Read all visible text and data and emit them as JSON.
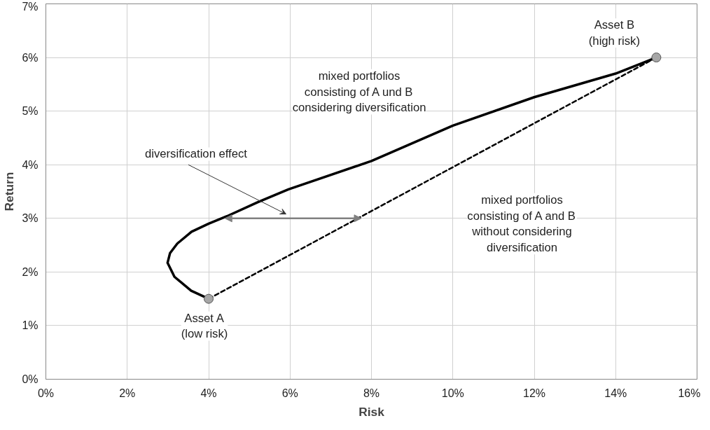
{
  "chart_data": {
    "type": "line",
    "xlabel": "Risk",
    "ylabel": "Return",
    "xlim": [
      0,
      16
    ],
    "ylim": [
      0,
      7
    ],
    "xticks": [
      {
        "value": 0,
        "label": "0%"
      },
      {
        "value": 2,
        "label": "2%"
      },
      {
        "value": 4,
        "label": "4%"
      },
      {
        "value": 6,
        "label": "6%"
      },
      {
        "value": 8,
        "label": "8%"
      },
      {
        "value": 10,
        "label": "10%"
      },
      {
        "value": 12,
        "label": "12%"
      },
      {
        "value": 14,
        "label": "14%"
      },
      {
        "value": 16,
        "label": "16%"
      }
    ],
    "yticks": [
      {
        "value": 0,
        "label": "0%"
      },
      {
        "value": 1,
        "label": "1%"
      },
      {
        "value": 2,
        "label": "2%"
      },
      {
        "value": 3,
        "label": "3%"
      },
      {
        "value": 4,
        "label": "4%"
      },
      {
        "value": 5,
        "label": "5%"
      },
      {
        "value": 6,
        "label": "6%"
      },
      {
        "value": 7,
        "label": "7%"
      }
    ],
    "grid": true,
    "series": [
      {
        "line_style": "solid",
        "color": "#000000",
        "x": [
          4.0,
          3.57,
          3.16,
          2.99,
          3.05,
          3.23,
          3.58,
          4.0,
          4.45,
          5.2,
          5.96,
          8.0,
          10.0,
          12.0,
          14.0,
          15.0
        ],
        "values": [
          1.5,
          1.65,
          1.91,
          2.17,
          2.35,
          2.53,
          2.75,
          2.9,
          3.04,
          3.3,
          3.54,
          4.07,
          4.73,
          5.26,
          5.7,
          6.0
        ]
      },
      {
        "line_style": "dashed",
        "color": "#000000",
        "x": [
          4.0,
          15.0
        ],
        "values": [
          1.5,
          6.0
        ]
      },
      {
        "type": "scatter",
        "marker": "circle",
        "color": "#a6a6a6",
        "x": [
          4.0,
          15.0
        ],
        "values": [
          1.5,
          6.0
        ]
      }
    ],
    "annotations": [
      {
        "text": "Asset B\n(high risk)",
        "x": 15.0,
        "y": 6.0
      },
      "mixed portfolios\nconsisting of A und B\nconsidering diversification",
      "diversification effect",
      "mixed portfolios\nconsisting of A and B\nwithout considering\ndiversification",
      {
        "text": "Asset A\n(low risk)",
        "x": 4.0,
        "y": 1.5
      }
    ]
  }
}
